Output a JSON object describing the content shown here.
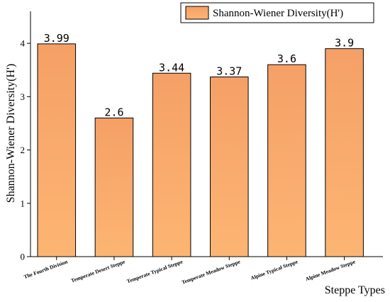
{
  "chart_data": {
    "type": "bar",
    "categories": [
      "The Fourth Division",
      "Temperate Desert Steppe",
      "Temperate Typical Steppe",
      "Temperate Meadow Steppe",
      "Alpine Typical Steppe",
      "Alpine Meadow Steppe"
    ],
    "values": [
      3.99,
      2.6,
      3.44,
      3.37,
      3.6,
      3.9
    ],
    "data_labels": [
      "3.99",
      "2.6",
      "3.44",
      "3.37",
      "3.6",
      "3.9"
    ],
    "series": [
      {
        "name": "Shannon-Wiener Diversity(H')",
        "values": [
          3.99,
          2.6,
          3.44,
          3.37,
          3.6,
          3.9
        ]
      }
    ],
    "xlabel": "Steppe Types",
    "ylabel": "Shannon-Wiener Diversity(H')",
    "ylim": [
      0,
      4.6
    ],
    "yticks": [
      0,
      1,
      2,
      3,
      4
    ],
    "legend_position": "top-right",
    "grid": false,
    "colors": {
      "bar_top": "#f5a066",
      "bar_bottom": "#fdb573",
      "bar_stroke": "#000000"
    }
  }
}
